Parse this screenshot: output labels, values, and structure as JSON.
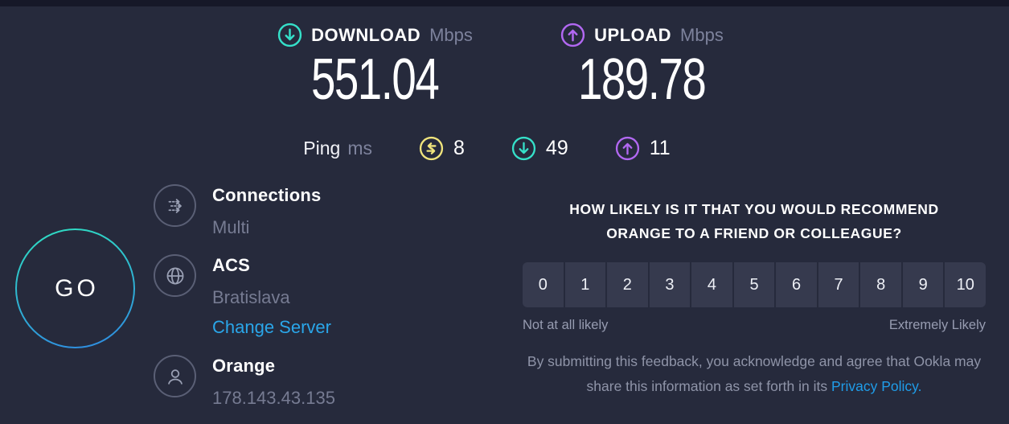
{
  "colors": {
    "background": "#262a3c",
    "top_strip": "#161828",
    "teal": "#35e0c9",
    "purple": "#b268f2",
    "yellow": "#f0e47c",
    "link_blue": "#2aa6e9",
    "cell_background": "#363a4e"
  },
  "icons": {
    "download": "circle-arrow-down-icon",
    "upload": "circle-arrow-up-icon",
    "ping_idle": "circle-swap-arrows-icon",
    "connections": "multi-dashed-arrows-icon",
    "server": "globe-icon",
    "isp": "person-icon"
  },
  "metrics": {
    "download": {
      "label": "DOWNLOAD",
      "unit": "Mbps",
      "value": "551.04"
    },
    "upload": {
      "label": "UPLOAD",
      "unit": "Mbps",
      "value": "189.78"
    },
    "ping": {
      "label": "Ping",
      "unit": "ms",
      "idle_value": "8",
      "download_value": "49",
      "upload_value": "11"
    }
  },
  "go_button": {
    "label": "GO"
  },
  "details": {
    "connections": {
      "title": "Connections",
      "value": "Multi"
    },
    "server": {
      "title": "ACS",
      "value": "Bratislava",
      "link": "Change Server"
    },
    "isp": {
      "title": "Orange",
      "value": "178.143.43.135"
    }
  },
  "feedback": {
    "question_line1": "HOW LIKELY IS IT THAT YOU WOULD RECOMMEND",
    "question_line2": "ORANGE TO A FRIEND OR COLLEAGUE?",
    "scale": [
      "0",
      "1",
      "2",
      "3",
      "4",
      "5",
      "6",
      "7",
      "8",
      "9",
      "10"
    ],
    "min_label": "Not at all likely",
    "max_label": "Extremely Likely",
    "disclaimer_prefix": "By submitting this feedback, you acknowledge and agree that Ookla may share this information as set forth in its ",
    "privacy_link": "Privacy Policy."
  }
}
